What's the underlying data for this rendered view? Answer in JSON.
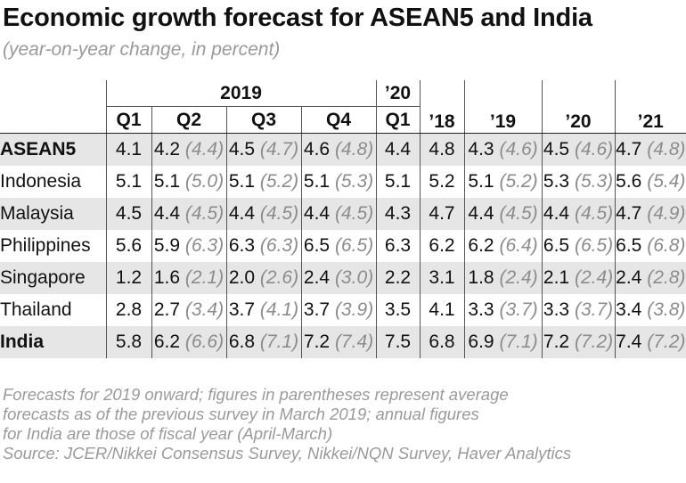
{
  "title": "Economic growth forecast for ASEAN5 and India",
  "subtitle": "(year-on-year change, in percent)",
  "header": {
    "year_2019": "2019",
    "year_20_short": "’20",
    "quarters": [
      "Q1",
      "Q2",
      "Q3",
      "Q4",
      "Q1"
    ],
    "annual": [
      "’18",
      "’19",
      "’20",
      "’21"
    ]
  },
  "rows": [
    {
      "name": "ASEAN5",
      "q1": "4.1",
      "q2": "4.2",
      "q2p": "(4.4)",
      "q3": "4.5",
      "q3p": "(4.7)",
      "q4": "4.6",
      "q4p": "(4.8)",
      "q1_20": "4.4",
      "y18": "4.8",
      "y19": "4.3",
      "y19p": "(4.6)",
      "y20": "4.5",
      "y20p": "(4.6)",
      "y21": "4.7",
      "y21p": "(4.8)"
    },
    {
      "name": "Indonesia",
      "q1": "5.1",
      "q2": "5.1",
      "q2p": "(5.0)",
      "q3": "5.1",
      "q3p": "(5.2)",
      "q4": "5.1",
      "q4p": "(5.3)",
      "q1_20": "5.1",
      "y18": "5.2",
      "y19": "5.1",
      "y19p": "(5.2)",
      "y20": "5.3",
      "y20p": "(5.3)",
      "y21": "5.6",
      "y21p": "(5.4)"
    },
    {
      "name": "Malaysia",
      "q1": "4.5",
      "q2": "4.4",
      "q2p": "(4.5)",
      "q3": "4.4",
      "q3p": "(4.5)",
      "q4": "4.4",
      "q4p": "(4.5)",
      "q1_20": "4.3",
      "y18": "4.7",
      "y19": "4.4",
      "y19p": "(4.5)",
      "y20": "4.4",
      "y20p": "(4.5)",
      "y21": "4.7",
      "y21p": "(4.9)"
    },
    {
      "name": "Philippines",
      "q1": "5.6",
      "q2": "5.9",
      "q2p": "(6.3)",
      "q3": "6.3",
      "q3p": "(6.3)",
      "q4": "6.5",
      "q4p": "(6.5)",
      "q1_20": "6.3",
      "y18": "6.2",
      "y19": "6.2",
      "y19p": "(6.4)",
      "y20": "6.5",
      "y20p": "(6.5)",
      "y21": "6.5",
      "y21p": "(6.8)"
    },
    {
      "name": "Singapore",
      "q1": "1.2",
      "q2": "1.6",
      "q2p": "(2.1)",
      "q3": "2.0",
      "q3p": "(2.6)",
      "q4": "2.4",
      "q4p": "(3.0)",
      "q1_20": "2.2",
      "y18": "3.1",
      "y19": "1.8",
      "y19p": "(2.4)",
      "y20": "2.1",
      "y20p": "(2.4)",
      "y21": "2.4",
      "y21p": "(2.8)"
    },
    {
      "name": "Thailand",
      "q1": "2.8",
      "q2": "2.7",
      "q2p": "(3.4)",
      "q3": "3.7",
      "q3p": "(4.1)",
      "q4": "3.7",
      "q4p": "(3.9)",
      "q1_20": "3.5",
      "y18": "4.1",
      "y19": "3.3",
      "y19p": "(3.7)",
      "y20": "3.3",
      "y20p": "(3.7)",
      "y21": "3.4",
      "y21p": "(3.8)"
    },
    {
      "name": "India",
      "q1": "5.8",
      "q2": "6.2",
      "q2p": "(6.6)",
      "q3": "6.8",
      "q3p": "(7.1)",
      "q4": "7.2",
      "q4p": "(7.4)",
      "q1_20": "7.5",
      "y18": "6.8",
      "y19": "6.9",
      "y19p": "(7.1)",
      "y20": "7.2",
      "y20p": "(7.2)",
      "y21": "7.4",
      "y21p": "(7.2)"
    }
  ],
  "footnote": {
    "line1": "Forecasts for 2019 onward; figures in parentheses represent average",
    "line2": "forecasts as of the previous survey in March 2019; annual figures",
    "line3": "for India are those of fiscal year (April-March)",
    "source": "Source: JCER/Nikkei Consensus Survey, Nikkei/NQN Survey, Haver Analytics"
  }
}
